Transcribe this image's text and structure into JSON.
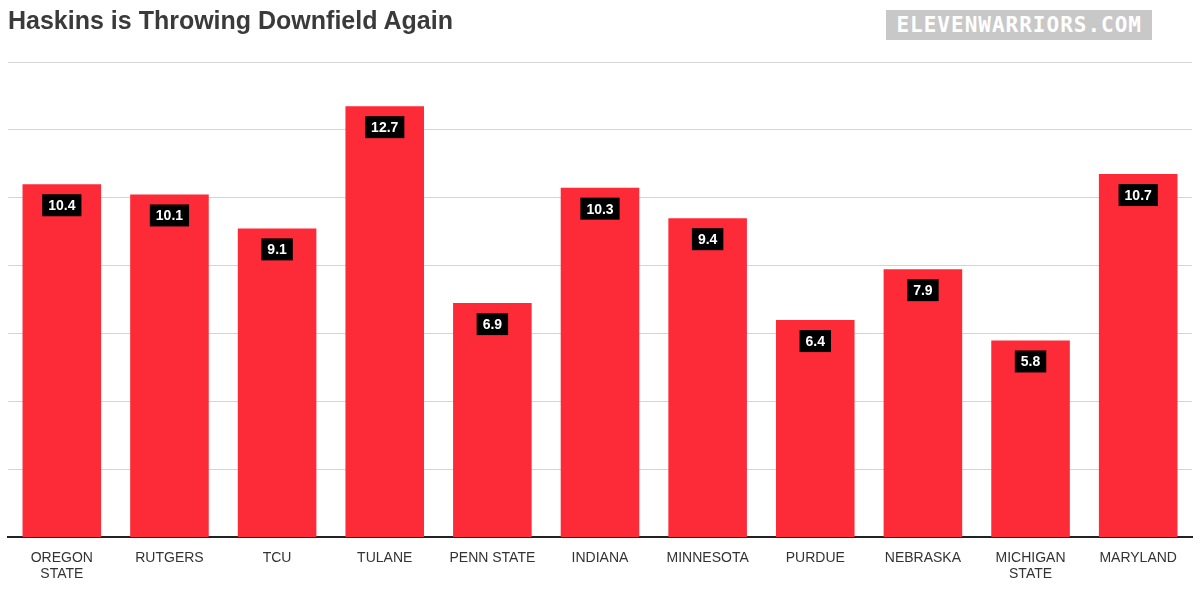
{
  "chart_data": {
    "type": "bar",
    "title": "Haskins is Throwing Downfield Again",
    "watermark": "ELEVENWARRIORS.COM",
    "categories": [
      "OREGON STATE",
      "RUTGERS",
      "TCU",
      "TULANE",
      "PENN STATE",
      "INDIANA",
      "MINNESOTA",
      "PURDUE",
      "NEBRASKA",
      "MICHIGAN STATE",
      "MARYLAND"
    ],
    "values": [
      10.4,
      10.1,
      9.1,
      12.7,
      6.9,
      10.3,
      9.4,
      6.4,
      7.9,
      5.8,
      10.7
    ],
    "color": "#fd2b37",
    "ylim": [
      0,
      14
    ],
    "yticks": [
      0,
      2,
      4,
      6,
      8,
      10,
      12,
      14
    ],
    "grid": true,
    "data_labels": true,
    "tick_labels": "x"
  }
}
